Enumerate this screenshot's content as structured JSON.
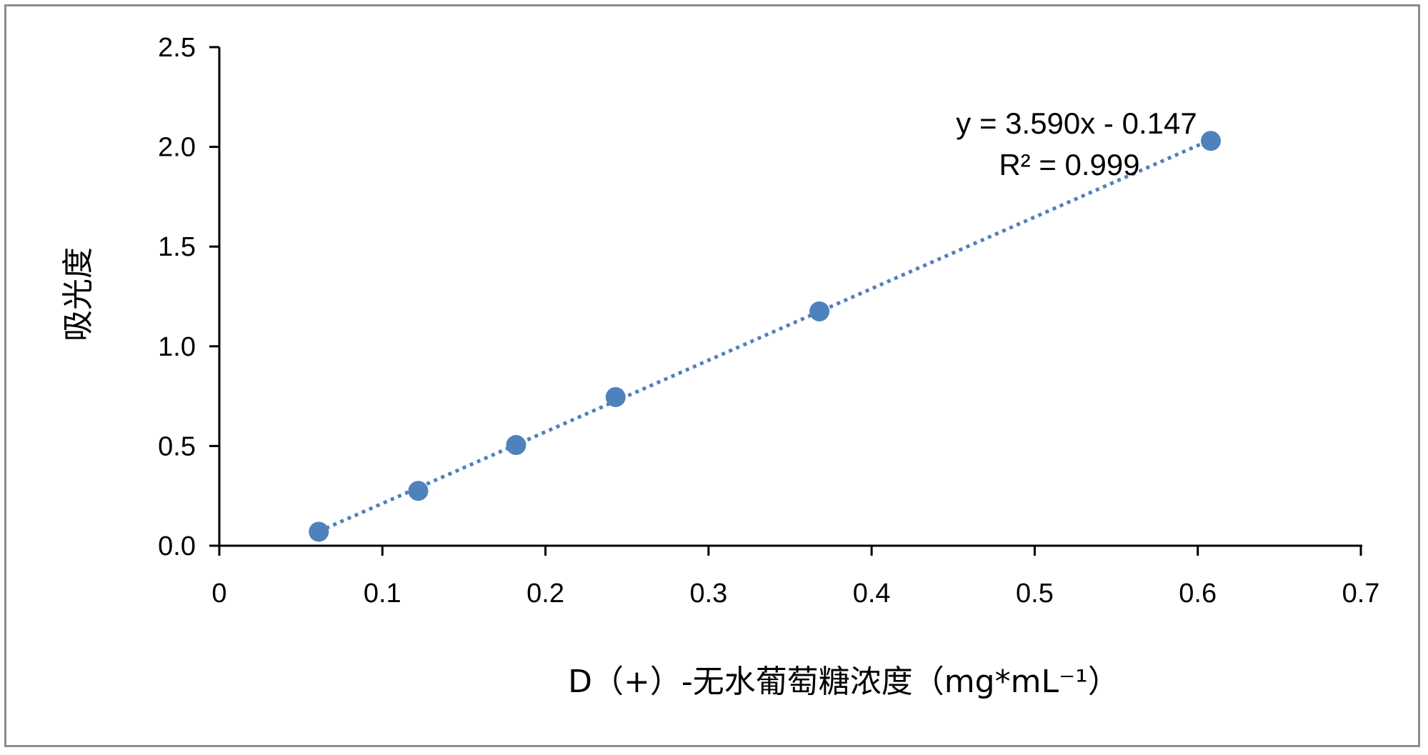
{
  "chart_data": {
    "type": "scatter",
    "xlabel": "D（+）-无水葡萄糖浓度（mg*mL⁻¹）",
    "ylabel": "吸光度",
    "xlim": [
      0,
      0.7
    ],
    "ylim": [
      0,
      2.5
    ],
    "x_ticks": [
      "0",
      "0.1",
      "0.2",
      "0.3",
      "0.4",
      "0.5",
      "0.6",
      "0.7"
    ],
    "y_ticks": [
      "0.0",
      "0.5",
      "1.0",
      "1.5",
      "2.0",
      "2.5"
    ],
    "grid": false,
    "legend": "none",
    "series": [
      {
        "color": "#4f81bd",
        "points": [
          {
            "x": 0.061,
            "y": 0.07
          },
          {
            "x": 0.122,
            "y": 0.275
          },
          {
            "x": 0.182,
            "y": 0.505
          },
          {
            "x": 0.243,
            "y": 0.745
          },
          {
            "x": 0.368,
            "y": 1.175
          },
          {
            "x": 0.608,
            "y": 2.03
          }
        ]
      }
    ],
    "trendline": {
      "style": "dotted",
      "color": "#4f81bd",
      "slope": 3.59,
      "intercept": -0.147,
      "x_range": [
        0.061,
        0.608
      ],
      "equation": "y = 3.590x - 0.147",
      "r_squared": "R² = 0.999"
    }
  }
}
